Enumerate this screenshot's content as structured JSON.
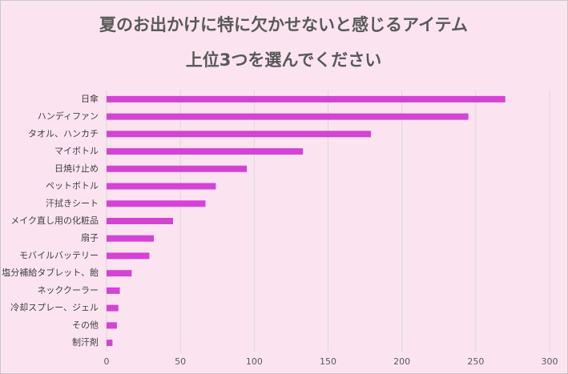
{
  "chart_data": {
    "type": "hbar",
    "title": [
      "夏のお出かけに特に欠かせないと感じるアイテム",
      "上位3つを選んでください"
    ],
    "categories": [
      "日傘",
      "ハンディファン",
      "タオル、ハンカチ",
      "マイボトル",
      "日焼け止め",
      "ペットボトル",
      "汗拭きシート",
      "メイク直し用の化粧品",
      "扇子",
      "モバイルバッテリー",
      "塩分補給タブレット、飴",
      "ネッククーラー",
      "冷却スプレー、ジェル",
      "その他",
      "制汗剤"
    ],
    "values": [
      270,
      245,
      179,
      133,
      95,
      74,
      67,
      45,
      32,
      29,
      17,
      9,
      8,
      7,
      4
    ],
    "color": "#d443d4",
    "xlim": [
      0,
      300
    ],
    "xticks": [
      0,
      50,
      100,
      150,
      200,
      250,
      300
    ],
    "grid": true
  }
}
